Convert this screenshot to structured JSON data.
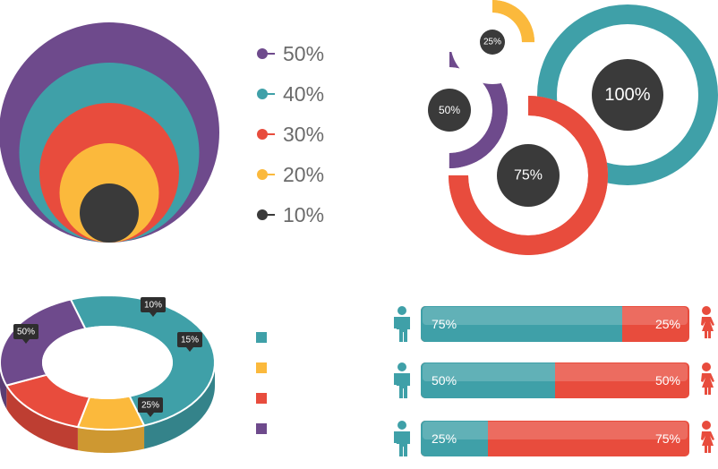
{
  "colors": {
    "purple": "#6e4a8c",
    "teal": "#3fa0a8",
    "red": "#e84c3d",
    "yellow": "#fbb93c",
    "dark": "#3a3a3a"
  },
  "chart_data": [
    {
      "type": "nested-circles",
      "series": [
        {
          "label": "50%",
          "value": 50,
          "color": "#6e4a8c"
        },
        {
          "label": "40%",
          "value": 40,
          "color": "#3fa0a8"
        },
        {
          "label": "30%",
          "value": 30,
          "color": "#e84c3d"
        },
        {
          "label": "20%",
          "value": 20,
          "color": "#fbb93c"
        },
        {
          "label": "10%",
          "value": 10,
          "color": "#3a3a3a"
        }
      ],
      "legend_position": "right"
    },
    {
      "type": "progress-rings",
      "rings": [
        {
          "label": "25%",
          "value": 25,
          "color": "#fbb93c"
        },
        {
          "label": "50%",
          "value": 50,
          "color": "#6e4a8c"
        },
        {
          "label": "75%",
          "value": 75,
          "color": "#e84c3d"
        },
        {
          "label": "100%",
          "value": 100,
          "color": "#3fa0a8"
        }
      ]
    },
    {
      "type": "pie",
      "style": "3d-donut",
      "slices": [
        {
          "label": "50%",
          "value": 50,
          "color": "#3fa0a8"
        },
        {
          "label": "10%",
          "value": 10,
          "color": "#fbb93c"
        },
        {
          "label": "15%",
          "value": 15,
          "color": "#e84c3d"
        },
        {
          "label": "25%",
          "value": 25,
          "color": "#6e4a8c"
        }
      ],
      "legend_colors": [
        "#3fa0a8",
        "#fbb93c",
        "#e84c3d",
        "#6e4a8c"
      ]
    },
    {
      "type": "bar",
      "style": "stacked-horizontal",
      "rows": [
        {
          "male": 75,
          "female": 25,
          "male_label": "75%",
          "female_label": "25%"
        },
        {
          "male": 50,
          "female": 50,
          "male_label": "50%",
          "female_label": "50%"
        },
        {
          "male": 25,
          "female": 75,
          "male_label": "25%",
          "female_label": "75%"
        }
      ],
      "colors": {
        "male": "#3fa0a8",
        "female": "#e84c3d"
      },
      "icons": {
        "male": "man-icon",
        "female": "woman-icon"
      }
    }
  ]
}
